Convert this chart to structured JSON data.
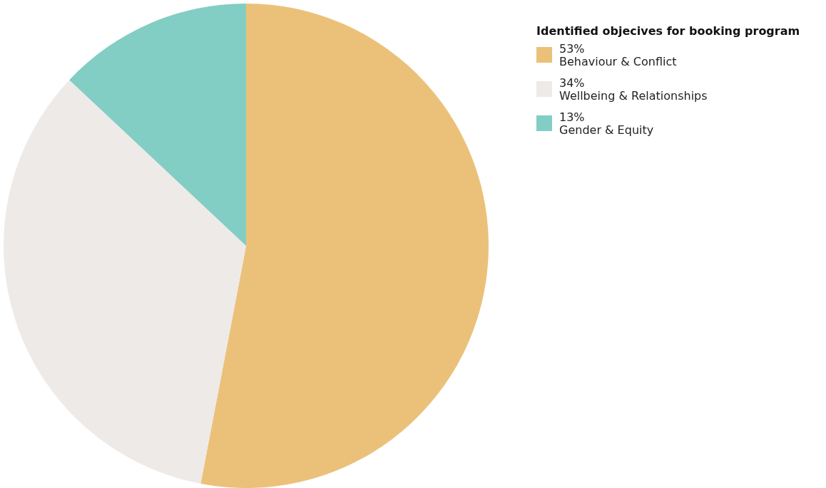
{
  "chart_data": {
    "type": "pie",
    "legend_title": "Identified objecives for booking program",
    "categories": [
      "Behaviour & Conflict",
      "Wellbeing & Relationships",
      "Gender & Equity"
    ],
    "values": [
      53,
      34,
      13
    ],
    "value_labels": [
      "53%",
      "34%",
      "13%"
    ],
    "colors": [
      "#ebc17a",
      "#eeeae7",
      "#82cdc4"
    ],
    "legend": "top right"
  }
}
